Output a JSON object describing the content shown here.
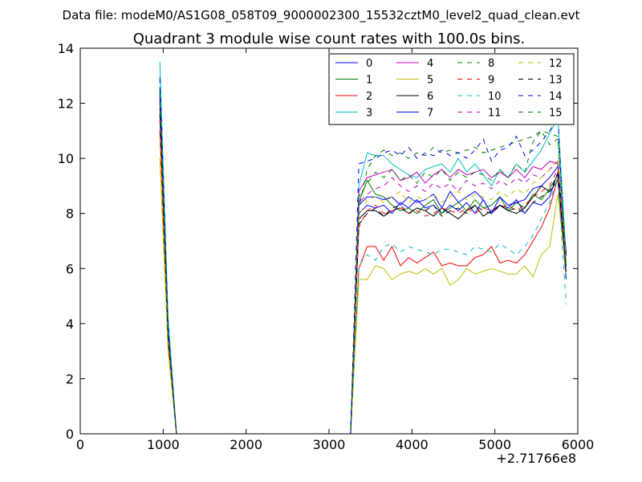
{
  "chart_data": {
    "type": "line",
    "suptitle": "Data file: modeM0/AS1G08_058T09_9000002300_15532cztM0_level2_quad_clean.evt",
    "title": "Quadrant 3 module wise count rates with 100.0s bins.",
    "xlabel": "",
    "ylabel": "",
    "x_offset_label": "+2.71766e8",
    "xlim": [
      0,
      6000
    ],
    "ylim": [
      0,
      14
    ],
    "xticks": [
      0,
      1000,
      2000,
      3000,
      4000,
      5000,
      6000
    ],
    "yticks": [
      0,
      2,
      4,
      6,
      8,
      10,
      12,
      14
    ],
    "grid": false,
    "legend_position": "top-right",
    "legend_columns": 4,
    "x": [
      960,
      1060,
      1160,
      3260,
      3360,
      3460,
      3560,
      3660,
      3760,
      3860,
      3960,
      4060,
      4160,
      4260,
      4360,
      4460,
      4560,
      4660,
      4760,
      4860,
      4960,
      5060,
      5160,
      5260,
      5360,
      5460,
      5560,
      5660,
      5760,
      5860
    ],
    "series": [
      {
        "name": "0",
        "color": "#0000ff",
        "dash": "solid",
        "values": [
          12.5,
          3.8,
          0,
          0,
          8.0,
          8.3,
          8.2,
          8.3,
          8.0,
          8.4,
          8.2,
          8.5,
          8.2,
          8.3,
          8.0,
          8.3,
          8.1,
          8.4,
          8.0,
          8.5,
          8.0,
          8.3,
          8.2,
          8.5,
          8.0,
          8.4,
          8.3,
          8.6,
          9.5,
          6.6
        ]
      },
      {
        "name": "1",
        "color": "#008000",
        "dash": "solid",
        "values": [
          12.0,
          3.6,
          0,
          0,
          8.4,
          9.2,
          8.7,
          8.6,
          8.3,
          8.1,
          8.2,
          8.0,
          8.3,
          8.5,
          8.0,
          8.2,
          8.4,
          8.1,
          8.5,
          8.2,
          8.3,
          8.6,
          8.1,
          8.4,
          8.2,
          8.7,
          8.5,
          8.9,
          9.4,
          5.6
        ]
      },
      {
        "name": "2",
        "color": "#ff0000",
        "dash": "solid",
        "values": [
          11.0,
          3.2,
          0,
          0,
          6.0,
          6.8,
          6.8,
          6.3,
          6.8,
          6.1,
          6.4,
          6.2,
          6.4,
          6.6,
          6.1,
          6.2,
          6.1,
          6.1,
          6.4,
          6.5,
          6.8,
          6.2,
          6.3,
          6.2,
          6.5,
          7.0,
          7.5,
          8.2,
          9.3,
          6.0
        ]
      },
      {
        "name": "3",
        "color": "#00bfbf",
        "dash": "solid",
        "values": [
          13.5,
          4.2,
          0,
          0,
          9.0,
          10.2,
          10.1,
          10.1,
          9.8,
          9.6,
          9.4,
          9.3,
          9.6,
          9.7,
          9.8,
          9.5,
          10.0,
          9.5,
          9.8,
          9.4,
          9.0,
          9.6,
          9.3,
          9.8,
          9.5,
          9.9,
          10.3,
          10.9,
          11.5,
          6.4
        ]
      },
      {
        "name": "4",
        "color": "#bf00bf",
        "dash": "solid",
        "values": [
          12.2,
          3.7,
          0,
          0,
          8.8,
          9.3,
          9.4,
          9.5,
          9.6,
          9.2,
          9.3,
          9.5,
          9.1,
          9.4,
          9.6,
          9.3,
          9.6,
          9.4,
          9.5,
          9.6,
          9.3,
          9.5,
          9.3,
          9.6,
          9.3,
          9.7,
          9.6,
          9.9,
          9.8,
          6.3
        ]
      },
      {
        "name": "5",
        "color": "#bfbf00",
        "dash": "solid",
        "values": [
          10.0,
          3.0,
          0,
          0,
          5.6,
          5.6,
          6.1,
          6.0,
          5.6,
          5.8,
          5.9,
          5.8,
          6.0,
          5.8,
          6.0,
          5.4,
          5.6,
          6.0,
          5.8,
          5.9,
          6.0,
          5.9,
          5.8,
          5.8,
          6.1,
          5.7,
          6.5,
          6.8,
          8.7,
          5.9
        ]
      },
      {
        "name": "6",
        "color": "#000000",
        "dash": "solid",
        "values": [
          11.8,
          3.5,
          0,
          0,
          7.8,
          8.1,
          8.1,
          7.9,
          8.1,
          8.2,
          8.0,
          8.2,
          8.1,
          7.9,
          8.2,
          8.0,
          7.8,
          8.1,
          8.3,
          7.9,
          8.1,
          8.3,
          8.1,
          8.0,
          8.2,
          8.6,
          9.0,
          8.8,
          9.2,
          6.1
        ]
      },
      {
        "name": "7",
        "color": "#0000ff",
        "dash": "solid",
        "values": [
          12.3,
          3.7,
          0,
          0,
          8.3,
          8.6,
          8.6,
          8.5,
          8.6,
          8.3,
          8.6,
          8.4,
          8.5,
          8.7,
          8.2,
          8.8,
          8.4,
          8.6,
          8.8,
          8.5,
          8.0,
          8.6,
          8.3,
          8.4,
          8.5,
          8.9,
          9.0,
          9.3,
          9.7,
          6.5
        ]
      },
      {
        "name": "8",
        "color": "#008000",
        "dash": "dashed",
        "values": [
          12.6,
          3.9,
          0,
          0,
          8.2,
          9.6,
          10.1,
          10.3,
          10.1,
          10.2,
          10.0,
          10.2,
          10.1,
          10.4,
          10.2,
          10.3,
          10.2,
          10.3,
          10.4,
          10.2,
          10.3,
          10.4,
          10.5,
          10.6,
          10.7,
          10.8,
          11.0,
          10.9,
          10.8,
          6.2
        ]
      },
      {
        "name": "9",
        "color": "#ff0000",
        "dash": "dashed",
        "values": [
          11.4,
          3.4,
          0,
          0,
          7.5,
          8.1,
          8.3,
          8.0,
          8.1,
          8.2,
          8.0,
          8.1,
          7.9,
          8.0,
          8.2,
          8.1,
          8.0,
          8.2,
          8.0,
          8.2,
          8.1,
          8.2,
          8.3,
          8.1,
          8.3,
          8.6,
          8.8,
          9.0,
          9.6,
          5.8
        ]
      },
      {
        "name": "10",
        "color": "#00bfbf",
        "dash": "dashed",
        "values": [
          13.0,
          4.0,
          0,
          0,
          6.1,
          6.5,
          6.3,
          6.8,
          6.9,
          6.6,
          6.8,
          6.7,
          6.6,
          6.5,
          6.7,
          6.7,
          6.6,
          6.5,
          6.8,
          6.7,
          6.6,
          6.9,
          6.7,
          6.5,
          6.8,
          7.2,
          7.8,
          8.4,
          9.3,
          4.7
        ]
      },
      {
        "name": "11",
        "color": "#bf00bf",
        "dash": "dashed",
        "values": [
          12.1,
          3.6,
          0,
          0,
          8.4,
          8.7,
          8.9,
          9.0,
          9.3,
          9.0,
          8.8,
          9.0,
          8.8,
          9.1,
          8.9,
          9.1,
          8.8,
          9.2,
          9.0,
          9.1,
          8.9,
          9.2,
          9.0,
          9.3,
          9.1,
          9.4,
          9.3,
          9.6,
          9.9,
          6.2
        ]
      },
      {
        "name": "12",
        "color": "#bfbf00",
        "dash": "dashed",
        "values": [
          10.8,
          3.2,
          0,
          0,
          7.9,
          8.5,
          8.6,
          8.4,
          8.6,
          8.8,
          8.4,
          8.6,
          8.5,
          8.7,
          8.4,
          8.6,
          8.8,
          8.5,
          8.7,
          8.6,
          8.5,
          8.8,
          8.6,
          8.9,
          8.7,
          9.1,
          9.3,
          9.6,
          10.0,
          6.3
        ]
      },
      {
        "name": "13",
        "color": "#000000",
        "dash": "dashed",
        "values": [
          11.6,
          3.5,
          0,
          0,
          7.6,
          8.0,
          8.2,
          7.9,
          8.2,
          8.3,
          8.0,
          8.2,
          8.1,
          8.3,
          7.9,
          8.1,
          8.2,
          8.0,
          8.3,
          8.1,
          8.0,
          8.3,
          8.1,
          8.2,
          8.0,
          8.4,
          8.6,
          8.8,
          9.4,
          5.9
        ]
      },
      {
        "name": "14",
        "color": "#0000ff",
        "dash": "dashed",
        "values": [
          12.9,
          3.9,
          0,
          0,
          9.8,
          9.9,
          10.0,
          10.2,
          10.3,
          10.1,
          10.4,
          10.0,
          10.2,
          10.1,
          10.3,
          10.1,
          10.2,
          10.0,
          10.3,
          10.7,
          9.9,
          10.3,
          10.4,
          10.8,
          10.1,
          10.3,
          10.6,
          11.0,
          11.5,
          5.5
        ]
      },
      {
        "name": "15",
        "color": "#008000",
        "dash": "dashed",
        "values": [
          12.4,
          3.8,
          0,
          0,
          8.6,
          9.1,
          9.5,
          9.3,
          9.6,
          9.2,
          9.4,
          9.1,
          9.5,
          9.3,
          9.6,
          9.2,
          9.5,
          9.3,
          9.5,
          9.4,
          9.2,
          9.6,
          9.3,
          9.8,
          9.5,
          10.6,
          11.0,
          10.5,
          10.7,
          6.0
        ]
      }
    ]
  }
}
